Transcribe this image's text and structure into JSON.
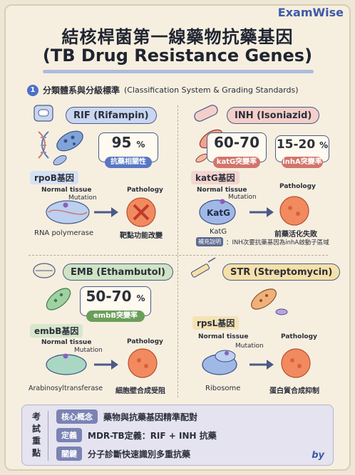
{
  "brand": "ExamWise",
  "title": {
    "zh": "結核桿菌第一線藥物抗藥基因",
    "en": "(TB Drug Resistance Genes)"
  },
  "section": {
    "number": "1",
    "label_zh": "分類體系與分級標準",
    "label_en": "(Classification System & Grading Standards)"
  },
  "common": {
    "normal_tissue": "Normal tissue",
    "mutation": "Mutation",
    "pathology": "Pathology"
  },
  "drugs": {
    "rif": {
      "name": "RIF (Rifampin)",
      "stat_value": "95",
      "stat_unit": "%",
      "stat_caption": "抗藥相關性",
      "gene": "rpoB基因",
      "target": "RNA polymerase",
      "outcome": "靶點功能改變"
    },
    "inh": {
      "name": "INH (Isoniazid)",
      "stat1_value": "60-70",
      "stat1_unit": "%",
      "stat1_caption": "katG突變率",
      "stat2_value": "15-20",
      "stat2_unit": "%",
      "stat2_caption": "inhA突變率",
      "gene": "katG基因",
      "protein_label": "KatG",
      "target": "KatG",
      "outcome": "前藥活化失敗",
      "note_tag": "補充說明",
      "note_text": "：INH次要抗藥基因為inhA啟動子區域"
    },
    "emb": {
      "name": "EMB (Ethambutol)",
      "stat_value": "50-70",
      "stat_unit": "%",
      "stat_caption": "embB突變率",
      "gene": "embB基因",
      "target": "Arabinosyltransferase",
      "outcome": "細胞壁合成受阻"
    },
    "str": {
      "name": "STR (Streptomycin)",
      "gene": "rpsL基因",
      "target": "Ribosome",
      "outcome": "蛋白質合成抑制"
    }
  },
  "summary": {
    "side": [
      "考",
      "試",
      "重",
      "點"
    ],
    "rows": [
      {
        "key": "核心概念",
        "value": "藥物與抗藥基因精準配對"
      },
      {
        "key": "定義",
        "value": "MDR-TB定義：RIF + INH 抗藥"
      },
      {
        "key": "關鍵",
        "value": "分子診斷快速識別多重抗藥"
      }
    ],
    "signature": "by"
  },
  "colors": {
    "blue": "#5776c4",
    "pink": "#d2756b",
    "green": "#6b9e5a",
    "yellow": "#e9b949",
    "pathology_orange": "#e8704a"
  }
}
